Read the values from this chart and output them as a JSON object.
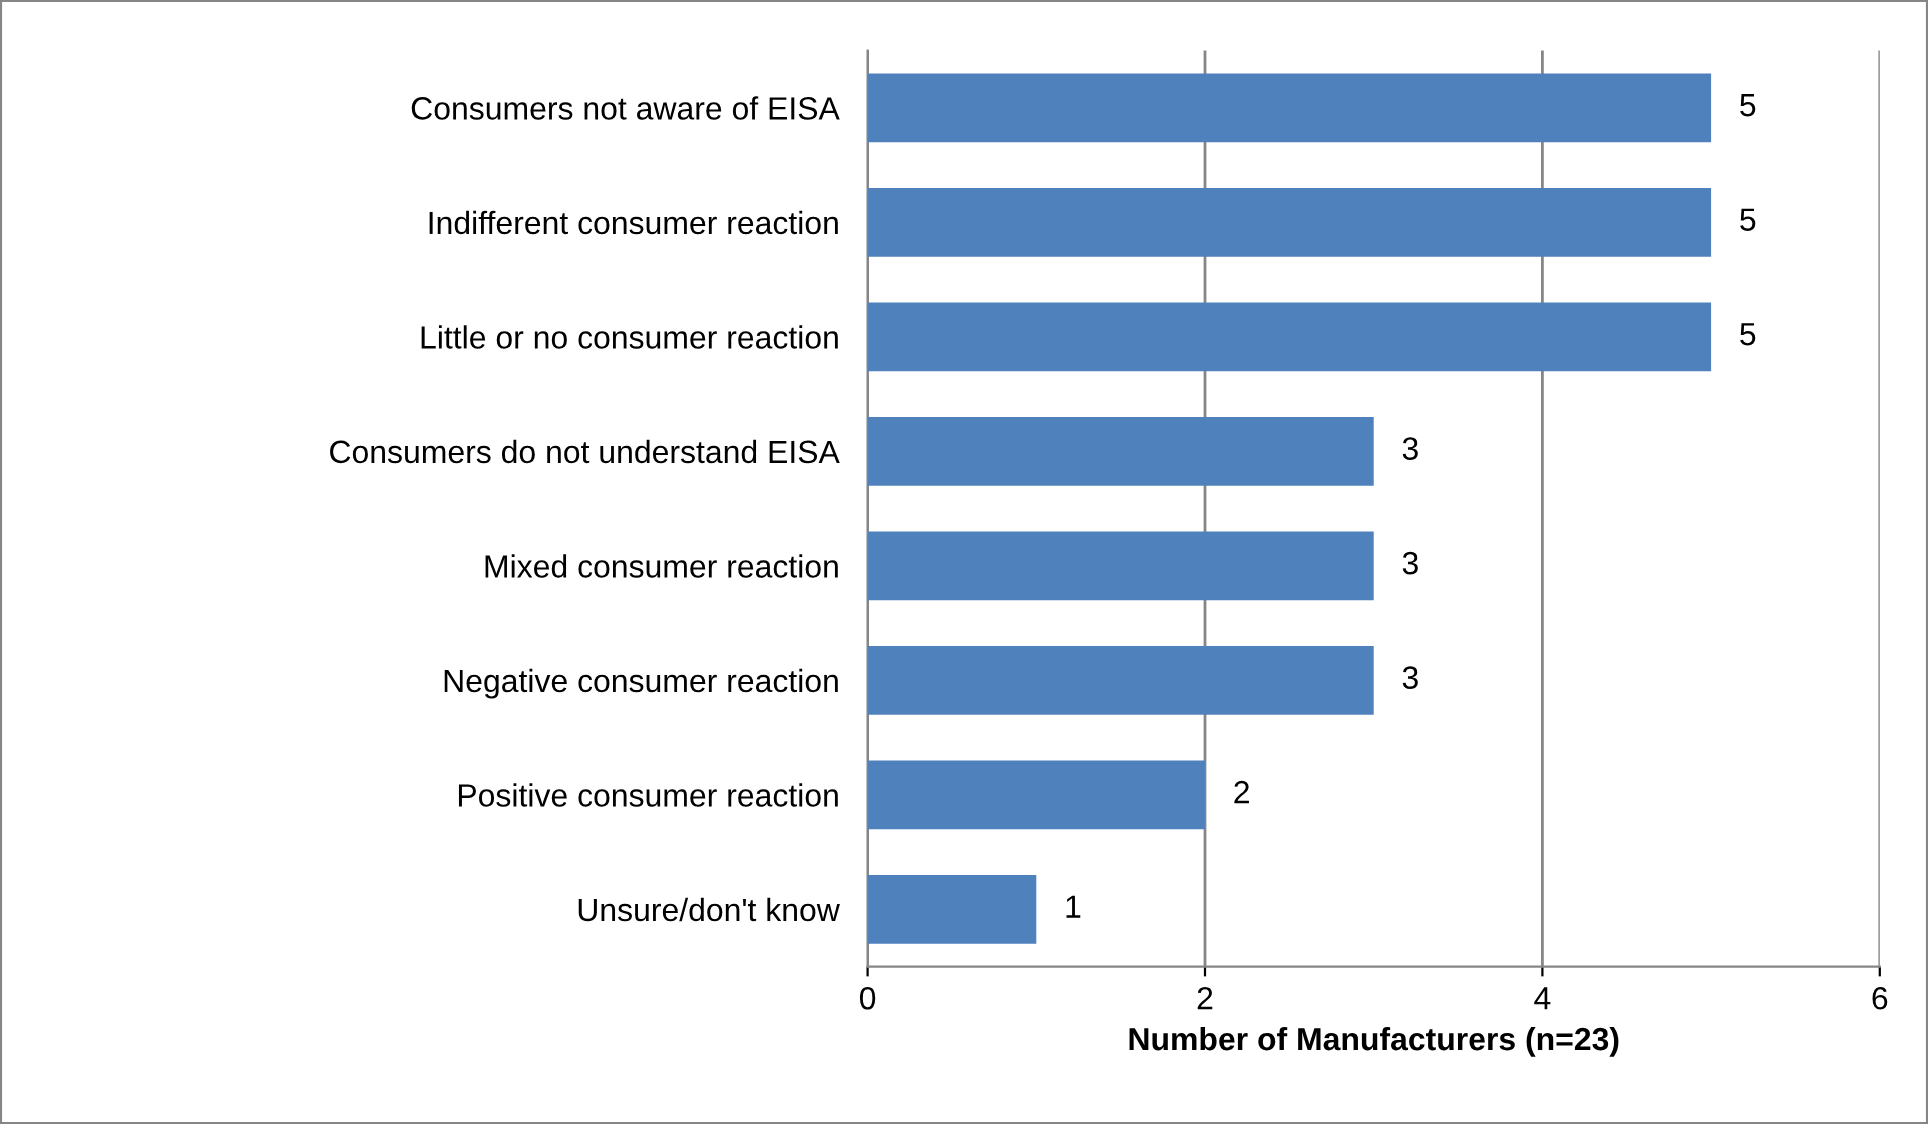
{
  "chart_data": {
    "type": "bar",
    "orientation": "horizontal",
    "xlabel": "Number of Manufacturers (n=23)",
    "categories": [
      "Consumers not aware of EISA",
      "Indifferent consumer reaction",
      "Little or no consumer reaction",
      "Consumers do not understand EISA",
      "Mixed consumer reaction",
      "Negative consumer reaction",
      "Positive consumer reaction",
      "Unsure/don't know"
    ],
    "values": [
      5,
      5,
      5,
      3,
      3,
      3,
      2,
      1
    ],
    "color": "#4f81bd",
    "xlim": [
      0,
      6
    ],
    "xticks": [
      0,
      2,
      4,
      6
    ],
    "grid": "x",
    "data_labels": true,
    "legend": false
  }
}
